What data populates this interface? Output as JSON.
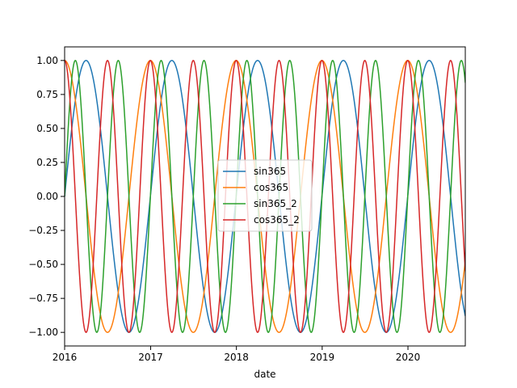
{
  "chart_data": {
    "type": "line",
    "title": "",
    "xlabel": "date",
    "ylabel": "",
    "x_range": [
      "2016-01-01",
      "2020-09-01"
    ],
    "ylim": [
      -1.1,
      1.1
    ],
    "x_ticks": [
      {
        "date": "2016-01-01",
        "label": "2016"
      },
      {
        "date": "2017-01-01",
        "label": "2017"
      },
      {
        "date": "2018-01-01",
        "label": "2018"
      },
      {
        "date": "2019-01-01",
        "label": "2019"
      },
      {
        "date": "2020-01-01",
        "label": "2020"
      }
    ],
    "y_ticks": [
      {
        "value": 1.0,
        "label": "1.00"
      },
      {
        "value": 0.75,
        "label": "0.75"
      },
      {
        "value": 0.5,
        "label": "0.50"
      },
      {
        "value": 0.25,
        "label": "0.25"
      },
      {
        "value": 0.0,
        "label": "0.00"
      },
      {
        "value": -0.25,
        "label": "−0.25"
      },
      {
        "value": -0.5,
        "label": "−0.50"
      },
      {
        "value": -0.75,
        "label": "−0.75"
      },
      {
        "value": -1.0,
        "label": "−1.00"
      }
    ],
    "grid": false,
    "legend_position": "center",
    "series": [
      {
        "name": "sin365",
        "function": "sin",
        "period_days": 365,
        "color": "#1f77b4"
      },
      {
        "name": "cos365",
        "function": "cos",
        "period_days": 365,
        "color": "#ff7f0e"
      },
      {
        "name": "sin365_2",
        "function": "sin",
        "period_days": 182.5,
        "color": "#2ca02c"
      },
      {
        "name": "cos365_2",
        "function": "cos",
        "period_days": 182.5,
        "color": "#d62728"
      }
    ]
  }
}
